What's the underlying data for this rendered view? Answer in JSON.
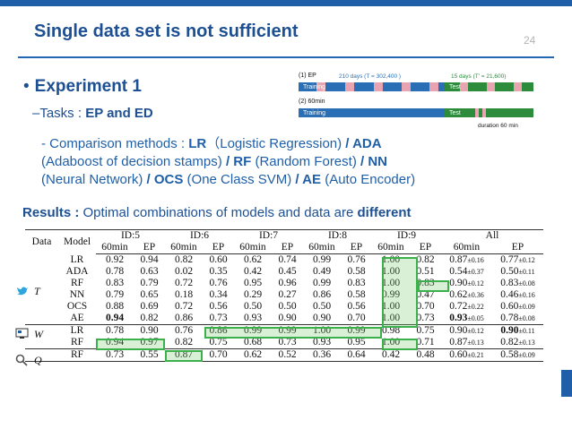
{
  "slide": {
    "title": "Single data set is not sufficient",
    "number": "24"
  },
  "bullet": {
    "dot": "•",
    "title": "Experiment 1"
  },
  "tasks": {
    "prefix": "–Tasks : ",
    "value": "EP and ED"
  },
  "timeline": {
    "ep_label": "(1) EP",
    "ep_train_days": "210 days (T = 302,400 )",
    "ep_test_days": "15 days (T' = 21,600)",
    "sixty_label": "(2) 60min",
    "training": "Training",
    "test": "Test",
    "duration": "duration 60 min"
  },
  "methods": {
    "lead": "- Comparison methods : ",
    "lr": "LR",
    "lr_full": "（Logistic Regression) ",
    "ada": "/ ADA",
    "ada_full": "(Adaboost of decision stamps) ",
    "rf": "/ RF",
    "rf_full": " (Random Forest) ",
    "nn": "/ NN",
    "nn_full": "(Neural Network) ",
    "ocs": "/ OCS",
    "ocs_full": " (One Class SVM) ",
    "ae": "/ AE",
    "ae_full": " (Auto Encoder)"
  },
  "results": {
    "label": "Results : ",
    "text": "Optimal combinations of models and data are ",
    "emph": "different"
  },
  "table": {
    "head_data": "Data",
    "head_model": "Model",
    "ids": [
      "ID:5",
      "ID:6",
      "ID:7",
      "ID:8",
      "ID:9",
      "All"
    ],
    "sub": [
      "60min",
      "EP"
    ],
    "groups": [
      {
        "symbol": "T",
        "rows": [
          {
            "model": "LR",
            "vals": [
              "0.92",
              "0.94",
              "0.82",
              "0.60",
              "0.62",
              "0.74",
              "0.99",
              "0.76",
              "1.00",
              "0.82"
            ],
            "all": [
              "0.87",
              "±0.16",
              "0.77",
              "±0.12"
            ]
          },
          {
            "model": "ADA",
            "vals": [
              "0.78",
              "0.63",
              "0.02",
              "0.35",
              "0.42",
              "0.45",
              "0.49",
              "0.58",
              "1.00",
              "0.51"
            ],
            "all": [
              "0.54",
              "±0.37",
              "0.50",
              "±0.11"
            ]
          },
          {
            "model": "RF",
            "vals": [
              "0.83",
              "0.79",
              "0.72",
              "0.76",
              "0.95",
              "0.96",
              "0.99",
              "0.83",
              "1.00",
              "0.83"
            ],
            "all": [
              "0.90",
              "±0.12",
              "0.83",
              "±0.08"
            ]
          },
          {
            "model": "NN",
            "vals": [
              "0.79",
              "0.65",
              "0.18",
              "0.34",
              "0.29",
              "0.27",
              "0.86",
              "0.58",
              "0.99",
              "0.47"
            ],
            "all": [
              "0.62",
              "±0.36",
              "0.46",
              "±0.16"
            ]
          },
          {
            "model": "OCS",
            "vals": [
              "0.88",
              "0.69",
              "0.72",
              "0.56",
              "0.50",
              "0.50",
              "0.50",
              "0.56",
              "1.00",
              "0.70"
            ],
            "all": [
              "0.72",
              "±0.22",
              "0.60",
              "±0.09"
            ]
          },
          {
            "model": "AE",
            "vals": [
              "0.94",
              "0.82",
              "0.86",
              "0.73",
              "0.93",
              "0.90",
              "0.90",
              "0.70",
              "1.00",
              "0.73"
            ],
            "all": [
              "0.93",
              "±0.05",
              "0.78",
              "±0.08"
            ]
          }
        ]
      },
      {
        "symbol": "W",
        "rows": [
          {
            "model": "LR",
            "vals": [
              "0.78",
              "0.90",
              "0.76",
              "0.86",
              "0.99",
              "0.99",
              "1.00",
              "0.99",
              "0.98",
              "0.75"
            ],
            "all": [
              "0.90",
              "±0.12",
              "0.90",
              "±0.11"
            ]
          },
          {
            "model": "RF",
            "vals": [
              "0.94",
              "0.97",
              "0.82",
              "0.75",
              "0.68",
              "0.73",
              "0.93",
              "0.95",
              "1.00",
              "0.71"
            ],
            "all": [
              "0.87",
              "±0.13",
              "0.82",
              "±0.13"
            ]
          }
        ]
      },
      {
        "symbol": "Q",
        "rows": [
          {
            "model": "RF",
            "vals": [
              "0.73",
              "0.55",
              "0.87",
              "0.70",
              "0.62",
              "0.52",
              "0.36",
              "0.64",
              "0.42",
              "0.48"
            ],
            "all": [
              "0.60",
              "±0.21",
              "0.58",
              "±0.09"
            ]
          }
        ]
      }
    ]
  },
  "colors": {
    "title_blue": "#1d4f93",
    "training_blue": "#2a6fb5",
    "test_green": "#2c8c3c",
    "gap_pink": "#e8a4b0",
    "highlight_green": "#3cb04a"
  }
}
